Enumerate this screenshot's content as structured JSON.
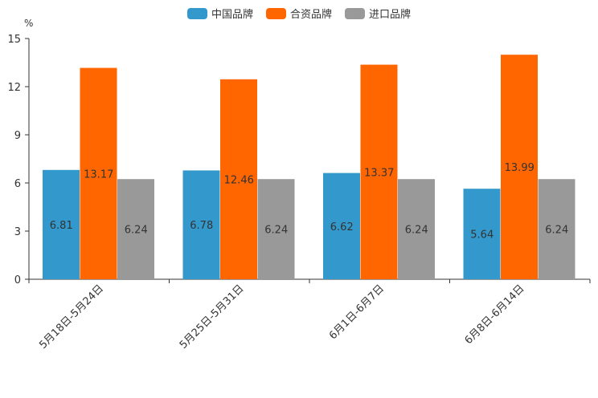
{
  "chart_data": {
    "type": "bar",
    "unit_label": "%",
    "categories": [
      "5月18日-5月24日",
      "5月25日-5月31日",
      "6月1日-6月7日",
      "6月8日-6月14日"
    ],
    "series": [
      {
        "name": "中国品牌",
        "color": "#3399cc",
        "values": [
          6.81,
          6.78,
          6.62,
          5.64
        ]
      },
      {
        "name": "合资品牌",
        "color": "#ff6600",
        "values": [
          13.17,
          12.46,
          13.37,
          13.99
        ]
      },
      {
        "name": "进口品牌",
        "color": "#999999",
        "values": [
          6.24,
          6.24,
          6.24,
          6.24
        ]
      }
    ],
    "ylim": [
      0,
      15
    ],
    "yticks": [
      0,
      3,
      6,
      9,
      12,
      15
    ],
    "legend_position": "top-center",
    "grid": false
  }
}
